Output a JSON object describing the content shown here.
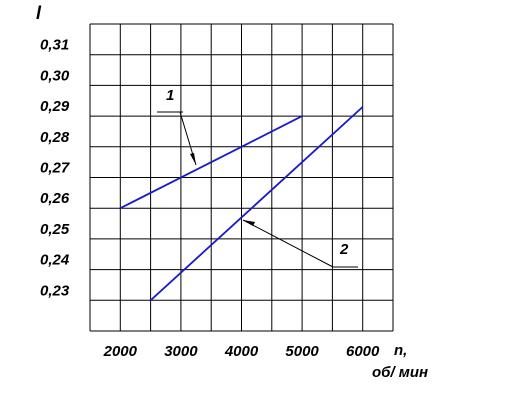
{
  "chart_data": {
    "type": "line",
    "y_label": "l",
    "x_label": "n,",
    "x_unit": "об/ мин",
    "series": [
      {
        "name": "1",
        "color": "#1a1acc",
        "x": [
          2000,
          5000
        ],
        "values": [
          0.26,
          0.29
        ]
      },
      {
        "name": "2",
        "color": "#1a1acc",
        "x": [
          2500,
          6000
        ],
        "values": [
          0.23,
          0.293
        ]
      }
    ],
    "xlim": [
      1500,
      6500
    ],
    "ylim": [
      0.22,
      0.32
    ],
    "xticks": [
      2000,
      3000,
      4000,
      5000,
      6000
    ],
    "yticks": [
      {
        "value": 0.23,
        "label": "0,23"
      },
      {
        "value": 0.24,
        "label": "0,24"
      },
      {
        "value": 0.25,
        "label": "0,25"
      },
      {
        "value": 0.26,
        "label": "0,26"
      },
      {
        "value": 0.27,
        "label": "0,27"
      },
      {
        "value": 0.28,
        "label": "0,28"
      },
      {
        "value": 0.29,
        "label": "0,29"
      },
      {
        "value": 0.3,
        "label": "0,30"
      },
      {
        "value": 0.31,
        "label": "0,31"
      }
    ],
    "grid": true
  }
}
